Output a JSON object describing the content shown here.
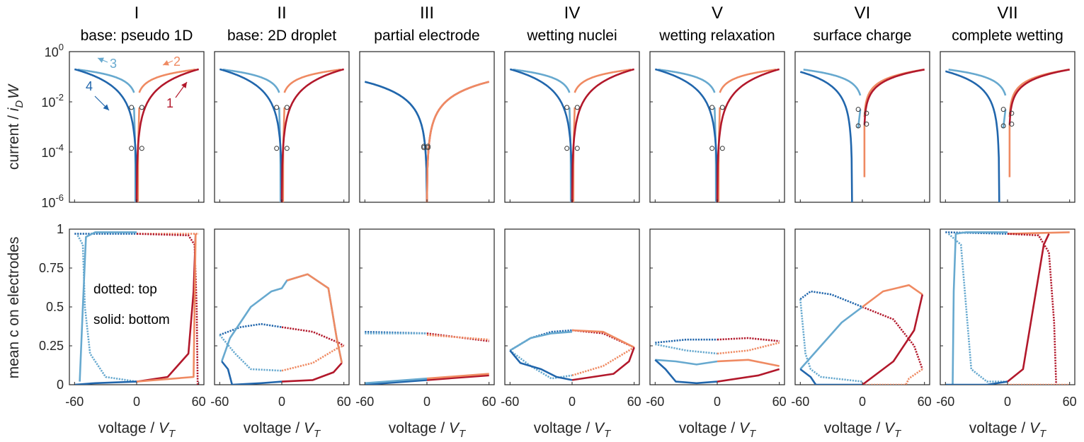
{
  "chart_data": {
    "type": "line",
    "panels": [
      {
        "id": "I",
        "title": "base: pseudo 1D"
      },
      {
        "id": "II",
        "title": "base: 2D droplet"
      },
      {
        "id": "III",
        "title": "partial electrode"
      },
      {
        "id": "IV",
        "title": "wetting nuclei"
      },
      {
        "id": "V",
        "title": "wetting relaxation"
      },
      {
        "id": "VI",
        "title": "surface charge"
      },
      {
        "id": "VII",
        "title": "complete wetting"
      }
    ],
    "top": {
      "ylabel_prefix": "current / ",
      "ylabel_var": "i",
      "ylabel_sub": "D",
      "ylabel_suffix": "W",
      "yscale": "log",
      "ylim": [
        1e-06,
        1
      ],
      "yticks": [
        {
          "base": "10",
          "exp": "0"
        },
        {
          "base": "10",
          "exp": "-2"
        },
        {
          "base": "10",
          "exp": "-4"
        },
        {
          "base": "10",
          "exp": "-6"
        }
      ],
      "annotations": [
        "1",
        "2",
        "3",
        "4"
      ]
    },
    "bottom": {
      "ylabel": "mean c on electrodes",
      "ylim": [
        0,
        1
      ],
      "yticks": [
        "0",
        "0.25",
        "0.5",
        "0.75",
        "1"
      ],
      "notes": [
        "dotted: top",
        "solid: bottom"
      ]
    },
    "xlim": [
      -65,
      65
    ],
    "xticks": [
      "-60",
      "0",
      "60"
    ],
    "xlabel_prefix": "voltage / ",
    "xlabel_var": "V",
    "xlabel_sub": "T",
    "series": [
      {
        "name": "1",
        "sweep": "0 to 60 V_T",
        "color": "#b2182b"
      },
      {
        "name": "2",
        "sweep": "60 to 0 V_T",
        "color": "#ef8a62"
      },
      {
        "name": "3",
        "sweep": "0 to -60 V_T",
        "color": "#67a9cf"
      },
      {
        "name": "4",
        "sweep": "-60 to 0 V_T",
        "color": "#2166ac"
      }
    ]
  }
}
